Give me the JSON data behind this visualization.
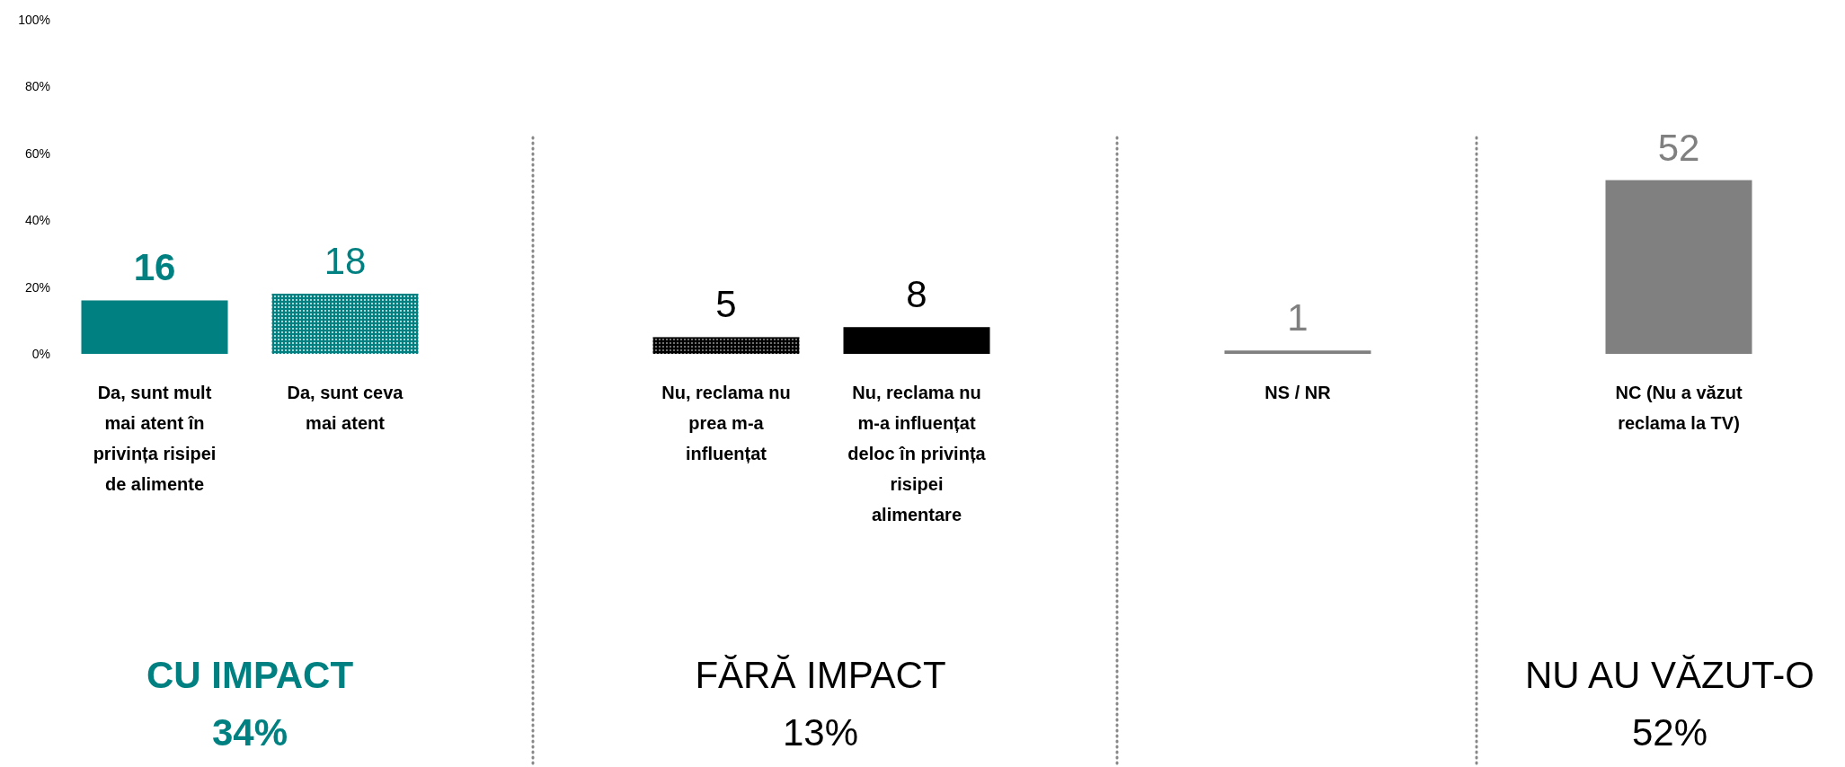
{
  "chart_data": {
    "type": "bar",
    "categories": [
      "Da, sunt mult mai atent în privința risipei de alimente",
      "Da, sunt ceva mai atent",
      "Nu, reclama nu prea m-a influențat",
      "Nu, reclama nu m-a influențat deloc în privința risipei alimentare",
      "NS / NR",
      "NC (Nu a văzut reclama la TV)"
    ],
    "values": [
      16,
      18,
      5,
      8,
      1,
      52
    ],
    "colors": [
      "#008080",
      "#008080",
      "#000000",
      "#000000",
      "#808080",
      "#808080"
    ],
    "ylim": [
      0,
      100
    ],
    "yticks": [
      {
        "value": 0,
        "label": "0%"
      },
      {
        "value": 20,
        "label": "20%"
      },
      {
        "value": 40,
        "label": "40%"
      },
      {
        "value": 60,
        "label": "60%"
      },
      {
        "value": 80,
        "label": "80%"
      },
      {
        "value": 100,
        "label": "100%"
      }
    ],
    "data_labels": true,
    "annotations": [
      "CU IMPACT",
      "34%",
      "FĂRĂ IMPACT",
      "13%",
      "NU AU VĂZUT-O",
      "52%"
    ]
  }
}
